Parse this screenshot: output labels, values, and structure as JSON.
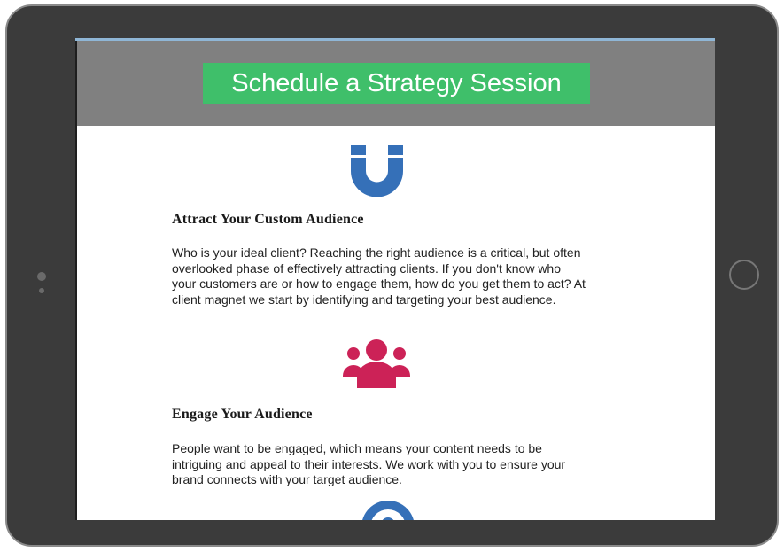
{
  "header": {
    "cta_label": "Schedule a Strategy Session",
    "background": "#808080",
    "cta_color": "#3fbf6a"
  },
  "sections": [
    {
      "icon": "magnet-icon",
      "icon_color": "#3570b8",
      "heading": "Attract Your Custom Audience",
      "body": "Who is your ideal client? Reaching the right audience is a critical, but often overlooked phase of effectively attracting clients. If you don't know who your customers are or how to engage them, how do you get them to act? At client magnet we start by identifying and targeting your best audience."
    },
    {
      "icon": "people-group-icon",
      "icon_color": "#cc2257",
      "heading": "Engage Your Audience",
      "body": "People want to be engaged, which means your content needs to be intriguing and appeal to their interests. We work with you to ensure your brand connects with your target audience."
    },
    {
      "icon": "circle-icon",
      "icon_color": "#3570b8"
    }
  ]
}
